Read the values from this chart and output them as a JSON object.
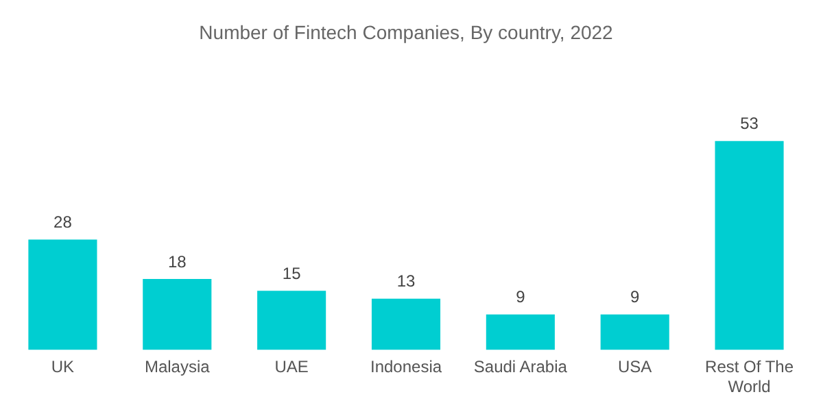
{
  "chart_data": {
    "type": "bar",
    "title": "Number of Fintech Companies, By country, 2022",
    "categories": [
      "UK",
      "Malaysia",
      "UAE",
      "Indonesia",
      "Saudi Arabia",
      "USA",
      "Rest Of The World"
    ],
    "values": [
      28,
      18,
      15,
      13,
      9,
      9,
      53
    ],
    "color": "#00ced1",
    "data_labels": true,
    "grid": false,
    "legend": false
  }
}
